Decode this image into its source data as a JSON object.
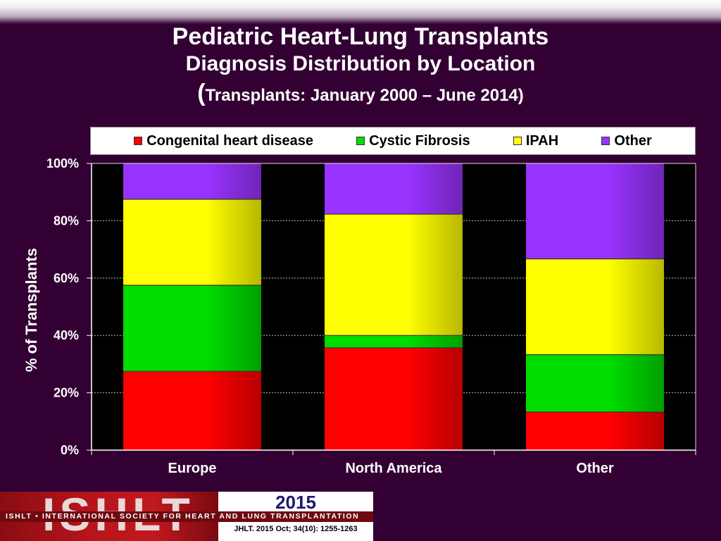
{
  "header": {
    "title": "Pediatric Heart-Lung Transplants",
    "subtitle": "Diagnosis Distribution by Location",
    "subtitle2_open": "(",
    "subtitle2_text": "Transplants: January 2000 – June 2014)"
  },
  "chart_data": {
    "type": "bar",
    "stacked": true,
    "normalized_percent": true,
    "categories": [
      "Europe",
      "North America",
      "Other"
    ],
    "series": [
      {
        "name": "Congenital heart disease",
        "color": "#ff0000",
        "values": [
          27.5,
          35.7,
          13.3
        ]
      },
      {
        "name": "Cystic Fibrosis",
        "color": "#00dd00",
        "values": [
          30.0,
          4.3,
          20.0
        ]
      },
      {
        "name": "IPAH",
        "color": "#ffff00",
        "values": [
          30.0,
          42.3,
          33.4
        ]
      },
      {
        "name": "Other",
        "color": "#9933ff",
        "values": [
          12.5,
          17.7,
          33.3
        ]
      }
    ],
    "ylabel": "% of Transplants",
    "ylim": [
      0,
      100
    ],
    "yticks": [
      "0%",
      "20%",
      "40%",
      "60%",
      "80%",
      "100%"
    ],
    "grid": true,
    "legend_position": "top",
    "plot_background": "#000000"
  },
  "footer": {
    "logo_text": "ISHLT",
    "band_text": "ISHLT • INTERNATIONAL SOCIETY FOR HEART AND LUNG TRANSPLANTATION",
    "year": "2015",
    "citation": "JHLT. 2015 Oct; 34(10): 1255-1263"
  }
}
